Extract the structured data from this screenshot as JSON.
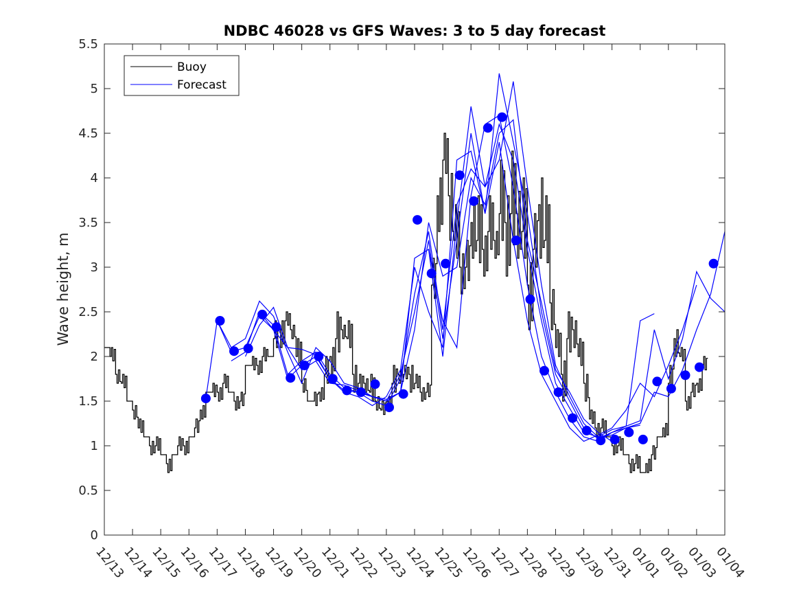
{
  "chart_data": {
    "type": "line",
    "title": "NDBC 46028 vs GFS Waves: 3 to 5 day forecast",
    "xlabel": "",
    "ylabel": "Wave height, m",
    "xlim": [
      0,
      22
    ],
    "ylim": [
      0,
      5.5
    ],
    "yticks": [
      0,
      0.5,
      1,
      1.5,
      2,
      2.5,
      3,
      3.5,
      4,
      4.5,
      5,
      5.5
    ],
    "ytick_labels": [
      "0",
      "0.5",
      "1",
      "1.5",
      "2",
      "2.5",
      "3",
      "3.5",
      "4",
      "4.5",
      "5",
      "5.5"
    ],
    "xtick_labels": [
      "12/13",
      "12/14",
      "12/15",
      "12/16",
      "12/17",
      "12/18",
      "12/19",
      "12/20",
      "12/21",
      "12/22",
      "12/23",
      "12/24",
      "12/25",
      "12/26",
      "12/27",
      "12/28",
      "12/29",
      "12/30",
      "12/31",
      "01/01",
      "01/02",
      "01/03",
      "01/04"
    ],
    "legend": {
      "placement": "top-left",
      "entries": [
        {
          "label": "Buoy",
          "color": "#000000"
        },
        {
          "label": "Forecast",
          "color": "#0000ff"
        }
      ]
    },
    "buoy": {
      "name": "Buoy",
      "color": "#000000",
      "x": [
        0,
        0.2,
        0.4,
        0.6,
        0.8,
        1.0,
        1.2,
        1.4,
        1.6,
        1.8,
        2.0,
        2.2,
        2.4,
        2.6,
        2.8,
        3.0,
        3.2,
        3.4,
        3.6,
        3.8,
        4.0,
        4.2,
        4.4,
        4.6,
        4.8,
        5.0,
        5.2,
        5.4,
        5.6,
        5.8,
        6.0,
        6.2,
        6.4,
        6.6,
        6.8,
        7.0,
        7.2,
        7.4,
        7.6,
        7.8,
        8.0,
        8.2,
        8.4,
        8.6,
        8.8,
        9.0,
        9.2,
        9.4,
        9.6,
        9.8,
        10.0,
        10.2,
        10.4,
        10.6,
        10.8,
        11.0,
        11.2,
        11.4,
        11.6,
        11.8,
        12.0,
        12.2,
        12.4,
        12.6,
        12.8,
        13.0,
        13.2,
        13.4,
        13.6,
        13.8,
        14.0,
        14.2,
        14.4,
        14.6,
        14.8,
        15.0,
        15.2,
        15.4,
        15.6,
        15.8,
        16.0,
        16.2,
        16.4,
        16.6,
        16.8,
        17.0,
        17.2,
        17.4,
        17.6,
        17.8,
        18.0,
        18.2,
        18.4,
        18.6,
        18.8,
        19.0,
        19.2,
        19.4,
        19.6,
        19.8,
        20.0,
        20.2,
        20.4,
        20.6,
        20.8,
        21.0,
        21.2
      ],
      "y": [
        2.1,
        2.0,
        1.8,
        1.7,
        1.5,
        1.4,
        1.2,
        1.1,
        1.0,
        1.0,
        0.9,
        0.8,
        0.9,
        1.0,
        1.0,
        1.1,
        1.2,
        1.4,
        1.6,
        1.6,
        1.6,
        1.7,
        1.6,
        1.5,
        1.5,
        1.9,
        1.9,
        1.9,
        2.0,
        2.0,
        2.2,
        2.3,
        2.4,
        2.3,
        2.0,
        1.7,
        1.5,
        1.5,
        1.6,
        1.8,
        2.0,
        2.2,
        2.3,
        2.2,
        1.8,
        1.7,
        1.7,
        1.6,
        1.5,
        1.4,
        1.5,
        1.7,
        1.8,
        1.8,
        1.8,
        1.7,
        1.6,
        1.6,
        2.8,
        3.8,
        4.2,
        3.8,
        3.3,
        3.0,
        3.0,
        3.5,
        3.3,
        3.2,
        3.4,
        3.3,
        3.6,
        3.5,
        3.6,
        3.6,
        3.4,
        2.8,
        3.2,
        3.7,
        3.3,
        2.6,
        2.1,
        1.8,
        2.2,
        2.3,
        2.0,
        1.7,
        1.3,
        1.2,
        1.2,
        1.1,
        1.0,
        1.0,
        0.9,
        0.8,
        0.8,
        0.7,
        0.8,
        0.9,
        1.1,
        1.2,
        1.7,
        2.2,
        2.0,
        1.5,
        1.6,
        1.7,
        1.9
      ],
      "noise": [
        0,
        0.1,
        -0.1,
        0.1,
        0,
        -0.1,
        0.1,
        0,
        -0.1,
        0.1,
        0,
        -0.1,
        0,
        0.1,
        -0.1,
        0,
        0.1,
        -0.1,
        0,
        0.1,
        -0.1,
        0.1,
        0,
        -0.1,
        0.1,
        0,
        0.1,
        -0.1,
        0.1,
        0,
        0.2,
        -0.2,
        0.1,
        -0.1,
        0.2,
        -0.1,
        0,
        0.1,
        -0.1,
        0.2,
        -0.2,
        0.3,
        -0.1,
        0.2,
        -0.2,
        0.1,
        -0.1,
        0.2,
        -0.1,
        0.1,
        -0.1,
        0.2,
        -0.1,
        0.1,
        -0.2,
        0.1,
        -0.1,
        0.1,
        0.3,
        -0.4,
        0.3,
        -0.5,
        0.4,
        -0.3,
        0.3,
        -0.4,
        0.5,
        -0.3,
        0.4,
        -0.2,
        0.6,
        -0.6,
        0.7,
        -0.5,
        0.6,
        -0.5,
        0.4,
        -0.6,
        0.5,
        -0.3,
        0.2,
        -0.3,
        0.3,
        -0.2,
        0.2,
        -0.2,
        0.1,
        -0.1,
        0.1,
        0,
        -0.1,
        0.1,
        0,
        -0.1,
        0.1,
        0,
        -0.1,
        0.1,
        0,
        -0.1,
        0.2,
        -0.2,
        0.1,
        -0.1,
        0.1,
        -0.1,
        0.1
      ]
    },
    "forecast_series": [
      {
        "name": "Forecast",
        "color": "#0000ff",
        "x": [
          3.6,
          4.0,
          4.5,
          5.0,
          5.5,
          6.0,
          6.5,
          7.0,
          7.5,
          8.0,
          8.5,
          9.0,
          9.5,
          10.0,
          10.5,
          11.0,
          11.5,
          12.0,
          12.5,
          13.0,
          13.5,
          14.0,
          14.5,
          15.0,
          15.5,
          16.0,
          16.5,
          17.0,
          17.5,
          18.0
        ],
        "y": [
          1.53,
          2.4,
          2.05,
          2.1,
          2.45,
          2.3,
          1.75,
          1.9,
          2.0,
          1.75,
          1.62,
          1.6,
          1.55,
          1.5,
          1.6,
          2.3,
          3.5,
          2.9,
          3.0,
          4.0,
          3.7,
          4.5,
          4.65,
          3.3,
          2.6,
          1.85,
          1.6,
          1.3,
          1.15,
          1.05
        ]
      },
      {
        "name": "Forecast",
        "color": "#0000ff",
        "x": [
          4.0,
          4.5,
          5.0,
          5.5,
          6.0,
          6.5,
          7.0,
          7.5,
          8.0,
          8.5,
          9.0,
          9.5,
          10.0,
          10.5,
          11.0,
          11.5,
          12.0,
          12.5,
          13.0,
          13.5,
          14.0,
          14.5,
          15.0,
          15.5,
          16.0,
          16.5,
          17.0,
          17.5,
          18.0,
          18.5
        ],
        "y": [
          2.4,
          2.1,
          2.2,
          2.62,
          2.45,
          2.05,
          1.7,
          2.1,
          1.95,
          1.7,
          1.65,
          1.55,
          1.5,
          1.8,
          2.5,
          3.3,
          2.2,
          3.3,
          4.5,
          3.6,
          5.17,
          4.4,
          3.6,
          2.5,
          1.8,
          1.5,
          1.2,
          1.08,
          1.15,
          1.2
        ]
      },
      {
        "name": "Forecast",
        "color": "#0000ff",
        "x": [
          4.5,
          5.0,
          5.5,
          6.0,
          6.5,
          7.0,
          7.5,
          8.0,
          8.5,
          9.0,
          9.5,
          10.0,
          10.5,
          11.0,
          11.5,
          12.0,
          12.5,
          13.0,
          13.5,
          14.0,
          14.5,
          15.0,
          15.5,
          16.0,
          16.5,
          17.0,
          17.5,
          18.0,
          18.5,
          19.0
        ],
        "y": [
          1.95,
          2.05,
          2.5,
          2.35,
          1.8,
          1.95,
          2.05,
          1.8,
          1.65,
          1.6,
          1.5,
          1.45,
          1.75,
          2.7,
          3.4,
          2.3,
          3.7,
          4.1,
          3.9,
          4.2,
          5.08,
          3.9,
          2.8,
          1.9,
          1.55,
          1.25,
          1.1,
          1.12,
          1.2,
          1.23
        ]
      },
      {
        "name": "Forecast",
        "color": "#0000ff",
        "x": [
          5.0,
          5.5,
          6.0,
          6.5,
          7.0,
          7.5,
          8.0,
          8.5,
          9.0,
          9.5,
          10.0,
          10.5,
          11.0,
          11.5,
          12.0,
          12.5,
          13.0,
          13.5,
          14.0,
          14.5,
          15.0,
          15.5,
          16.0,
          16.5,
          17.0,
          17.5,
          18.0,
          18.5,
          19.0,
          19.5
        ],
        "y": [
          2.0,
          2.35,
          2.55,
          2.1,
          1.85,
          1.95,
          1.7,
          1.68,
          1.62,
          1.55,
          1.52,
          1.6,
          3.1,
          3.2,
          2.0,
          3.5,
          4.8,
          3.9,
          4.6,
          4.2,
          3.2,
          2.4,
          1.7,
          1.42,
          1.15,
          1.1,
          1.18,
          1.22,
          2.4,
          2.48
        ]
      },
      {
        "name": "Forecast",
        "color": "#0000ff",
        "x": [
          5.5,
          6.0,
          6.5,
          7.0,
          7.5,
          8.0,
          8.5,
          9.0,
          9.5,
          10.0,
          10.5,
          11.0,
          11.5,
          12.0,
          12.5,
          13.0,
          13.5,
          14.0,
          14.5,
          15.0,
          15.5,
          16.0,
          16.5,
          17.0,
          17.5,
          18.0,
          18.5,
          19.0,
          19.5,
          20.0,
          20.5,
          21.0
        ],
        "y": [
          2.5,
          2.3,
          2.1,
          2.08,
          2.02,
          1.75,
          1.6,
          1.55,
          1.45,
          1.55,
          1.85,
          3.0,
          2.5,
          2.1,
          4.2,
          4.3,
          3.6,
          4.4,
          3.3,
          2.4,
          1.8,
          1.5,
          1.2,
          1.05,
          1.12,
          1.2,
          1.4,
          1.7,
          1.55,
          1.9,
          2.3,
          2.8
        ]
      },
      {
        "name": "Forecast",
        "color": "#0000ff",
        "x": [
          11.5,
          12.0,
          12.5,
          13.0,
          13.5,
          14.0,
          14.5,
          15.0,
          15.5,
          16.0,
          16.5,
          17.0,
          17.5,
          18.0,
          18.5,
          19.0,
          19.5,
          20.0,
          20.5,
          21.0,
          21.5,
          22.0
        ],
        "y": [
          3.2,
          2.4,
          2.1,
          3.8,
          4.6,
          4.7,
          3.9,
          2.8,
          2.0,
          1.6,
          1.3,
          1.1,
          1.05,
          1.15,
          1.22,
          1.28,
          2.3,
          1.75,
          2.2,
          2.95,
          2.65,
          2.5
        ]
      },
      {
        "name": "Forecast",
        "color": "#0000ff",
        "x": [
          18.5,
          19.0,
          19.5,
          20.0,
          20.5,
          21.0,
          21.5,
          22.0
        ],
        "y": [
          1.2,
          1.25,
          1.6,
          1.55,
          1.85,
          2.3,
          2.7,
          3.4
        ]
      }
    ],
    "forecast_markers": {
      "name": "Forecast markers",
      "color": "#0000ff",
      "x": [
        3.6,
        4.1,
        4.6,
        5.1,
        5.6,
        6.1,
        6.6,
        7.1,
        7.6,
        8.1,
        8.6,
        9.1,
        9.6,
        10.1,
        10.6,
        11.1,
        11.6,
        12.1,
        12.6,
        13.1,
        13.6,
        14.1,
        14.6,
        15.1,
        15.6,
        16.1,
        16.6,
        17.1,
        17.6,
        18.1,
        18.6,
        19.1,
        19.6,
        20.1,
        20.6,
        21.1,
        21.6
      ],
      "y": [
        1.53,
        2.4,
        2.06,
        2.09,
        2.47,
        2.33,
        1.76,
        1.9,
        2.0,
        1.75,
        1.62,
        1.6,
        1.69,
        1.43,
        1.58,
        3.53,
        2.93,
        3.04,
        4.03,
        3.74,
        4.56,
        4.68,
        3.3,
        2.64,
        1.84,
        1.6,
        1.31,
        1.17,
        1.06,
        1.07,
        1.15,
        1.07,
        1.72,
        1.64,
        1.79,
        1.88,
        3.04
      ]
    }
  }
}
